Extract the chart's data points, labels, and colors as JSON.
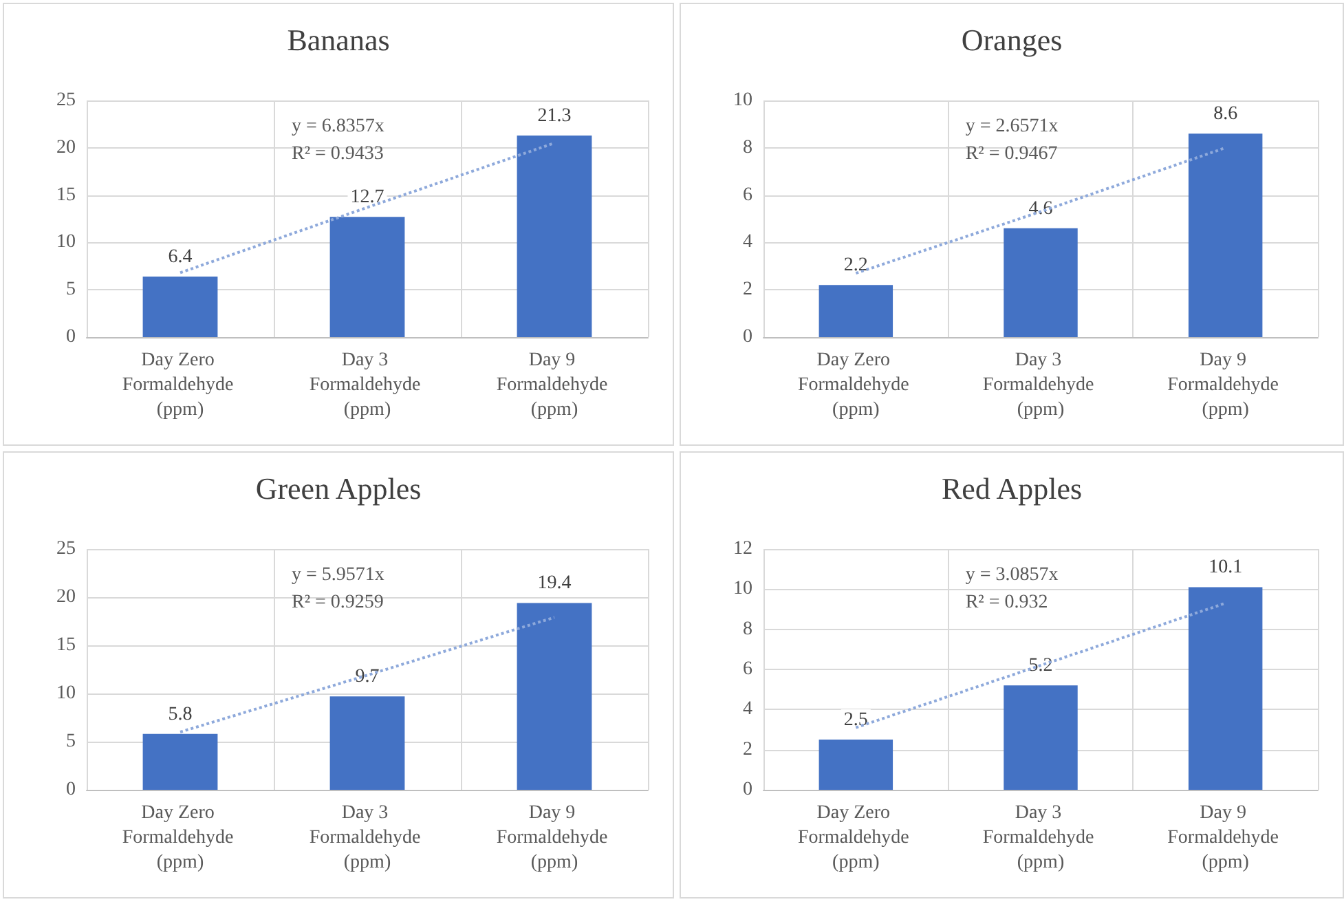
{
  "chart_data": [
    {
      "type": "bar",
      "title": "Bananas",
      "categories": [
        "Day Zero Formaldehyde (ppm)",
        "Day 3 Formaldehyde (ppm)",
        "Day 9 Formaldehyde (ppm)"
      ],
      "series": [
        {
          "color": "#4472c4",
          "values": [
            6.4,
            12.7,
            21.3
          ],
          "value_labels": [
            "6.4",
            "12.7",
            "21.3"
          ]
        },
        {
          "type": "line",
          "color": "#8ea9db",
          "line_style": "dotted",
          "marker": "none",
          "values": [
            6.8,
            13.7,
            20.5
          ]
        }
      ],
      "ylim": [
        0,
        25
      ],
      "yticks": [
        0,
        5,
        10,
        15,
        20,
        25
      ],
      "grid": true,
      "annotations": [
        "y = 6.8357x",
        "R² = 0.9433"
      ]
    },
    {
      "type": "bar",
      "title": "Oranges",
      "categories": [
        "Day Zero Formaldehyde (ppm)",
        "Day 3 Formaldehyde (ppm)",
        "Day 9 Formaldehyde (ppm)"
      ],
      "series": [
        {
          "color": "#4472c4",
          "values": [
            2.2,
            4.6,
            8.6
          ],
          "value_labels": [
            "2.2",
            "4.6",
            "8.6"
          ]
        },
        {
          "type": "line",
          "color": "#8ea9db",
          "line_style": "dotted",
          "marker": "none",
          "values": [
            2.7,
            5.3,
            8.0
          ]
        }
      ],
      "ylim": [
        0,
        10
      ],
      "yticks": [
        0,
        2,
        4,
        6,
        8,
        10
      ],
      "grid": true,
      "annotations": [
        "y = 2.6571x",
        "R² = 0.9467"
      ]
    },
    {
      "type": "bar",
      "title": "Green Apples",
      "categories": [
        "Day Zero Formaldehyde (ppm)",
        "Day 3 Formaldehyde (ppm)",
        "Day 9 Formaldehyde (ppm)"
      ],
      "series": [
        {
          "color": "#4472c4",
          "values": [
            5.8,
            9.7,
            19.4
          ],
          "value_labels": [
            "5.8",
            "9.7",
            "19.4"
          ]
        },
        {
          "type": "line",
          "color": "#8ea9db",
          "line_style": "dotted",
          "marker": "none",
          "values": [
            6.0,
            11.9,
            17.9
          ]
        }
      ],
      "ylim": [
        0,
        25
      ],
      "yticks": [
        0,
        5,
        10,
        15,
        20,
        25
      ],
      "grid": true,
      "annotations": [
        "y = 5.9571x",
        "R² = 0.9259"
      ]
    },
    {
      "type": "bar",
      "title": "Red Apples",
      "categories": [
        "Day Zero Formaldehyde (ppm)",
        "Day 3 Formaldehyde (ppm)",
        "Day 9 Formaldehyde (ppm)"
      ],
      "series": [
        {
          "color": "#4472c4",
          "values": [
            2.5,
            5.2,
            10.1
          ],
          "value_labels": [
            "2.5",
            "5.2",
            "10.1"
          ]
        },
        {
          "type": "line",
          "color": "#8ea9db",
          "line_style": "dotted",
          "marker": "none",
          "values": [
            3.1,
            6.2,
            9.3
          ]
        }
      ],
      "ylim": [
        0,
        12
      ],
      "yticks": [
        0,
        2,
        4,
        6,
        8,
        10,
        12
      ],
      "grid": true,
      "annotations": [
        "y = 3.0857x",
        "R² = 0.932"
      ]
    }
  ]
}
